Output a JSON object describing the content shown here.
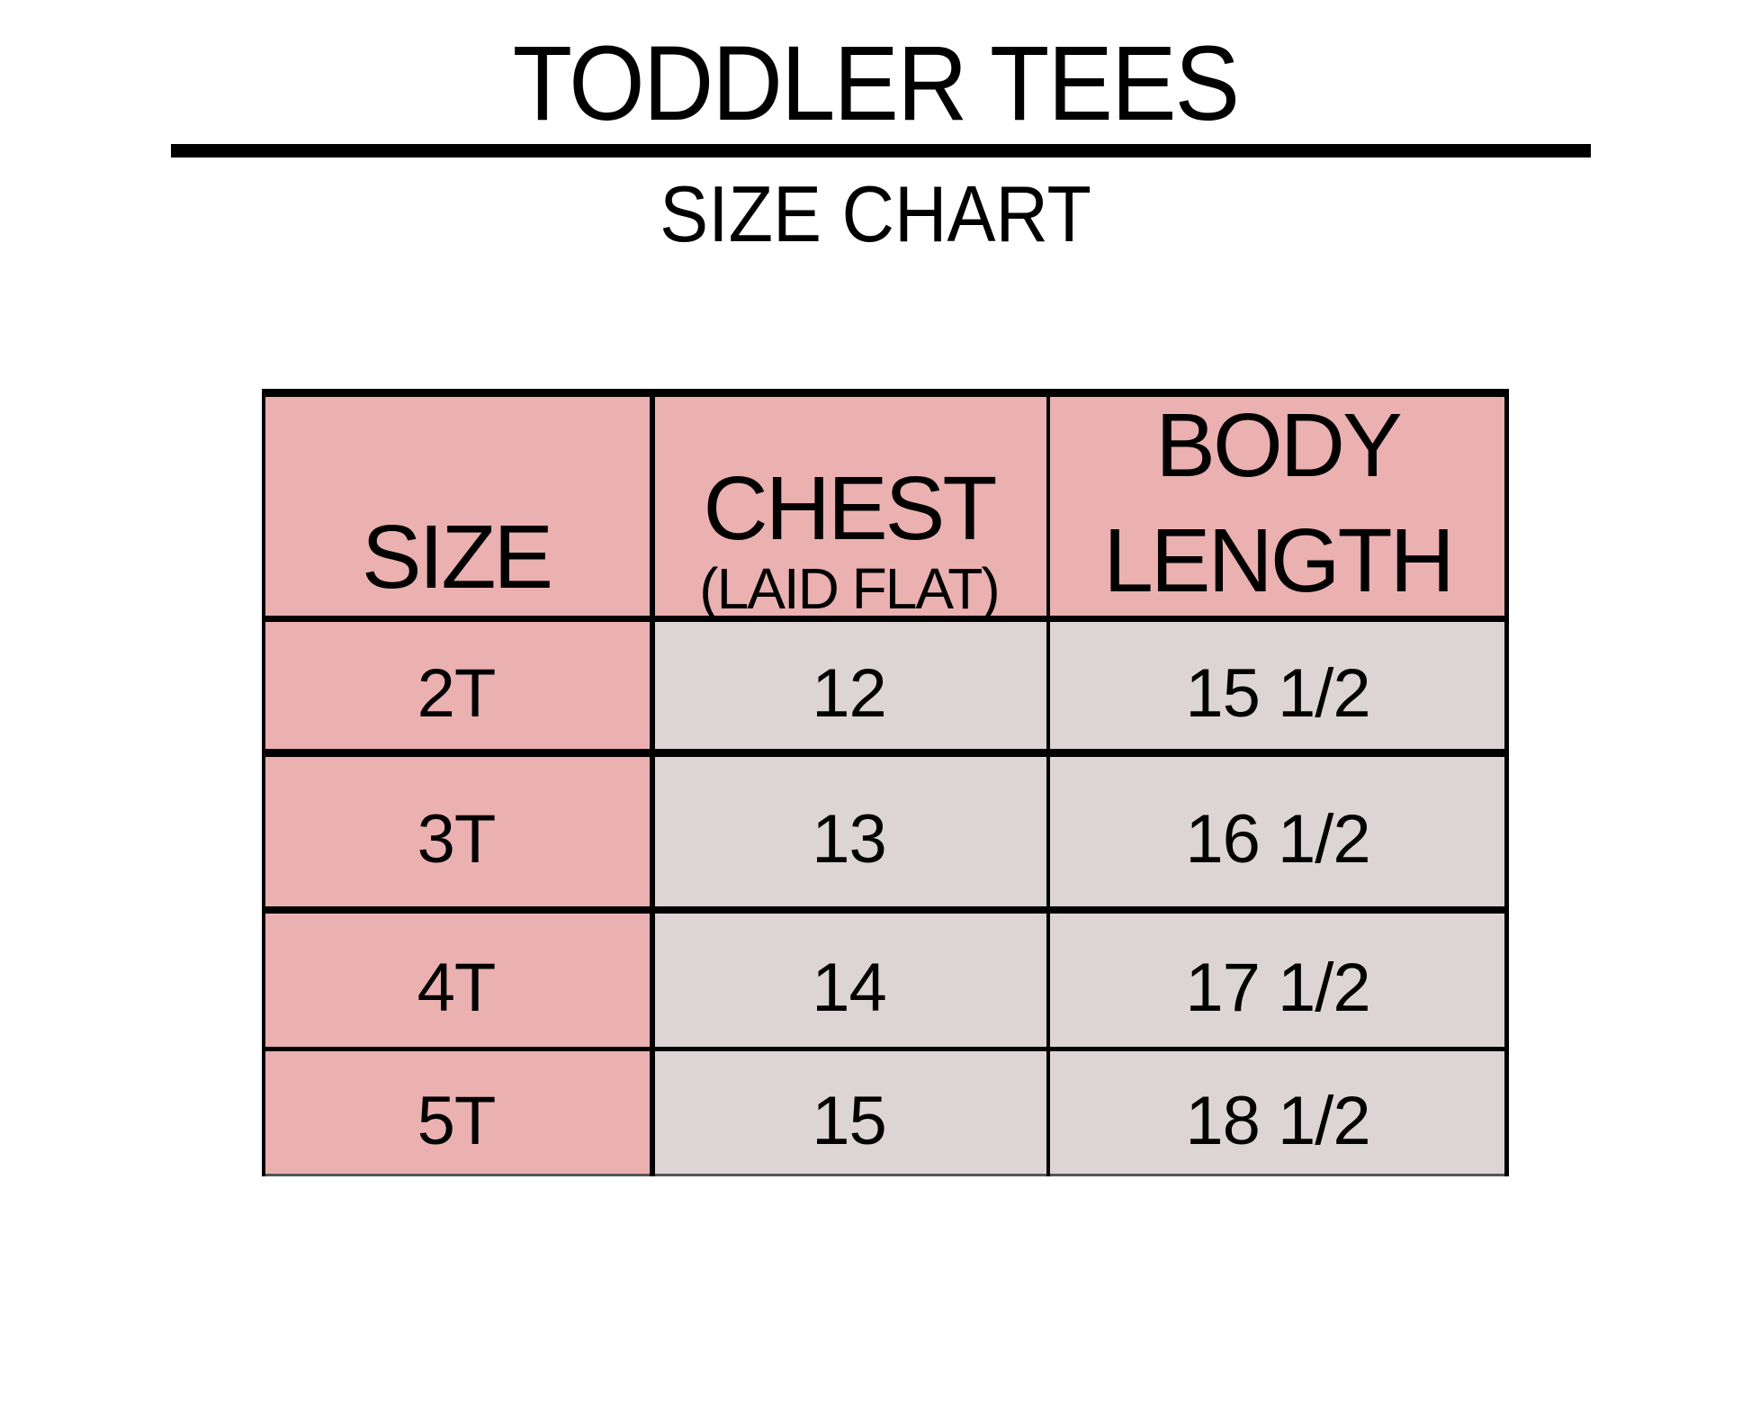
{
  "title": "TODDLER TEES",
  "subtitle": "SIZE CHART",
  "colors": {
    "header": "#ebb0b0",
    "size_column": "#ebb0b0",
    "data_cells": "#ddd4d5"
  },
  "table": {
    "headers": {
      "size": "SIZE",
      "chest": "CHEST",
      "chest_note": "(LAID FLAT)",
      "body_length_line1": "BODY",
      "body_length_line2": "LENGTH"
    },
    "rows": [
      {
        "size": "2T",
        "chest": "12",
        "body_length": "15 1/2"
      },
      {
        "size": "3T",
        "chest": "13",
        "body_length": "16 1/2"
      },
      {
        "size": "4T",
        "chest": "14",
        "body_length": "17 1/2"
      },
      {
        "size": "5T",
        "chest": "15",
        "body_length": "18 1/2"
      }
    ]
  }
}
